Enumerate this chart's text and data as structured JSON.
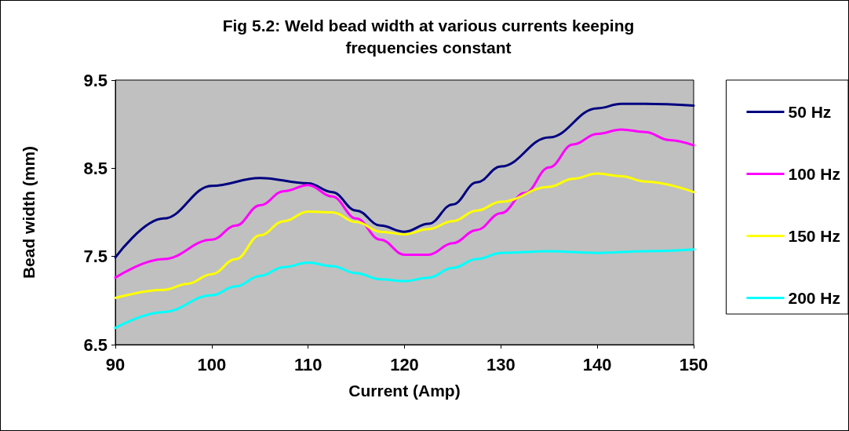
{
  "chart_data": {
    "type": "line",
    "title": "Fig 5.2: Weld bead width at various currents keeping\nfrequencies constant",
    "xlabel": "Current (Amp)",
    "ylabel": "Bead width (mm)",
    "xlim": [
      90,
      150
    ],
    "xticks": [
      90,
      100,
      110,
      120,
      130,
      140,
      150
    ],
    "ylim": [
      6.5,
      9.5
    ],
    "yticks": [
      6.5,
      7.5,
      8.5,
      9.5
    ],
    "grid": false,
    "legend": "right",
    "marker": "none",
    "line_style": "solid",
    "series": [
      {
        "name": "50 Hz",
        "color": "#000080",
        "x": [
          90,
          95,
          100,
          105,
          110,
          112.5,
          115,
          117.5,
          120,
          122.5,
          125,
          127.5,
          130,
          135,
          140,
          142.5,
          145,
          150
        ],
        "values": [
          7.49,
          7.93,
          8.3,
          8.39,
          8.33,
          8.23,
          8.02,
          7.85,
          7.78,
          7.87,
          8.09,
          8.34,
          8.52,
          8.85,
          9.18,
          9.23,
          9.23,
          9.21
        ]
      },
      {
        "name": "100 Hz",
        "color": "#ff00ff",
        "x": [
          90,
          95,
          100,
          102.5,
          105,
          107.5,
          110,
          112.5,
          115,
          117.5,
          120,
          122.5,
          125,
          127.5,
          130,
          132.5,
          135,
          137.5,
          140,
          142.5,
          145,
          147.5,
          150
        ],
        "values": [
          7.26,
          7.47,
          7.69,
          7.85,
          8.08,
          8.24,
          8.31,
          8.18,
          7.93,
          7.69,
          7.52,
          7.52,
          7.65,
          7.8,
          7.99,
          8.22,
          8.51,
          8.77,
          8.89,
          8.94,
          8.91,
          8.82,
          8.76
        ]
      },
      {
        "name": "150 Hz",
        "color": "#ffff00",
        "x": [
          90,
          95,
          97.5,
          100,
          102.5,
          105,
          107.5,
          110,
          112.5,
          115,
          117.5,
          120,
          122.5,
          125,
          127.5,
          130,
          135,
          137.5,
          140,
          142.5,
          145,
          150
        ],
        "values": [
          7.03,
          7.12,
          7.19,
          7.3,
          7.47,
          7.74,
          7.9,
          8.01,
          8,
          7.89,
          7.78,
          7.75,
          7.81,
          7.9,
          8.02,
          8.12,
          8.29,
          8.38,
          8.44,
          8.41,
          8.35,
          8.23
        ]
      },
      {
        "name": "200 Hz",
        "color": "#00ffff",
        "x": [
          90,
          95,
          100,
          102.5,
          105,
          107.5,
          110,
          112.5,
          115,
          117.5,
          120,
          122.5,
          125,
          127.5,
          130,
          135,
          140,
          145,
          150
        ],
        "values": [
          6.69,
          6.87,
          7.06,
          7.16,
          7.28,
          7.38,
          7.43,
          7.39,
          7.31,
          7.24,
          7.22,
          7.26,
          7.37,
          7.47,
          7.54,
          7.56,
          7.54,
          7.56,
          7.58
        ]
      }
    ]
  }
}
